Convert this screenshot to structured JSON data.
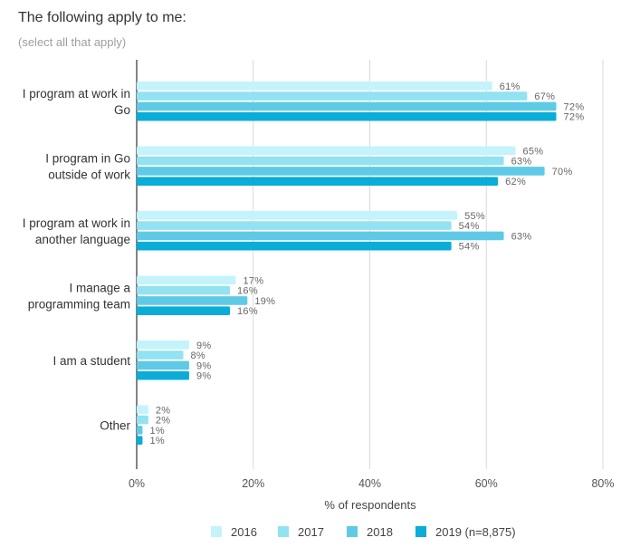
{
  "chart_data": {
    "type": "bar",
    "orientation": "horizontal",
    "title": "The following apply to me:",
    "subtitle": "(select all that apply)",
    "xlabel": "% of respondents",
    "ylabel": "",
    "xlim": [
      0,
      80
    ],
    "xticks": [
      "0%",
      "20%",
      "40%",
      "60%",
      "80%"
    ],
    "grid": true,
    "legend_position": "bottom",
    "categories": [
      [
        "I program at work in",
        "Go"
      ],
      [
        "I program in Go",
        "outside of work"
      ],
      [
        "I program at work in",
        "another language"
      ],
      [
        "I manage a",
        "programming team"
      ],
      [
        "I am a student"
      ],
      [
        "Other"
      ]
    ],
    "series": [
      {
        "name": "2016",
        "color": "#c4f3fb",
        "values": [
          61,
          65,
          55,
          17,
          9,
          2
        ],
        "labels": [
          "61%",
          "65%",
          "55%",
          "17%",
          "9%",
          "2%"
        ]
      },
      {
        "name": "2017",
        "color": "#92e2f2",
        "values": [
          67,
          63,
          54,
          16,
          8,
          2
        ],
        "labels": [
          "67%",
          "63%",
          "54%",
          "16%",
          "8%",
          "2%"
        ]
      },
      {
        "name": "2018",
        "color": "#5fcae6",
        "values": [
          72,
          70,
          63,
          19,
          9,
          1
        ],
        "labels": [
          "72%",
          "70%",
          "63%",
          "19%",
          "9%",
          "1%"
        ]
      },
      {
        "name": "2019 (n=8,875)",
        "color": "#0aadd8",
        "values": [
          72,
          62,
          54,
          16,
          9,
          1
        ],
        "labels": [
          "72%",
          "62%",
          "54%",
          "16%",
          "9%",
          "1%"
        ]
      }
    ]
  }
}
